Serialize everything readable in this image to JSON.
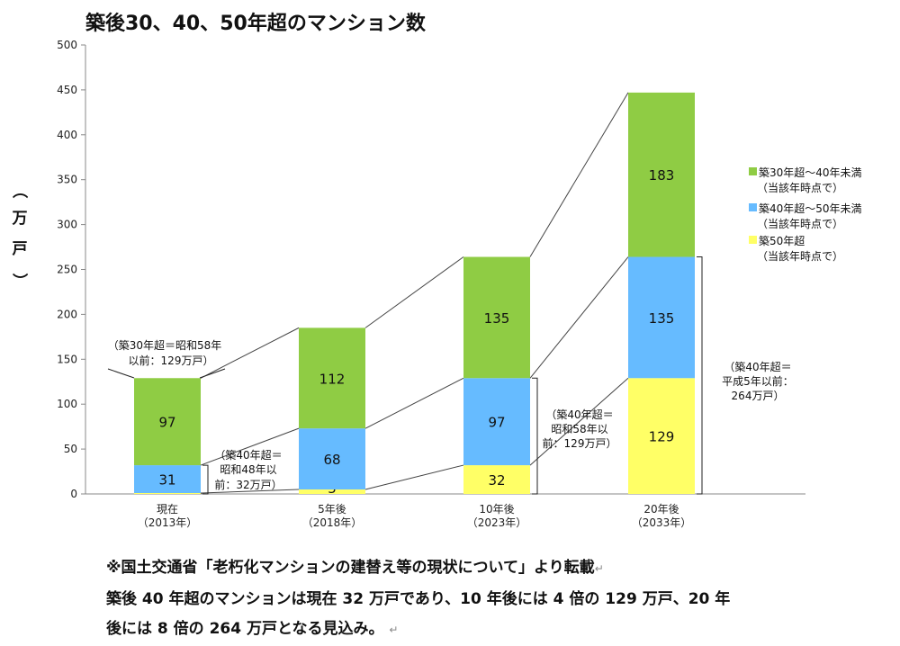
{
  "chart_data": {
    "type": "bar",
    "stacked": true,
    "title": "築後30、40、50年超のマンション数",
    "ylabel_chars": [
      "（",
      "万",
      "戸",
      "）"
    ],
    "ylim": [
      0,
      500
    ],
    "yticks": [
      0,
      50,
      100,
      150,
      200,
      250,
      300,
      350,
      400,
      450,
      500
    ],
    "grid": false,
    "categories": [
      [
        "現在",
        "（2013年）"
      ],
      [
        "5年後",
        "（2018年）"
      ],
      [
        "10年後",
        "（2023年）"
      ],
      [
        "20年後",
        "（2033年）"
      ]
    ],
    "series": [
      {
        "name_lines": [
          "築50年超",
          "（当該年時点で）"
        ],
        "color": "#ffff66",
        "values": [
          1,
          5,
          32,
          129
        ]
      },
      {
        "name_lines": [
          "築40年超～50年未満",
          "（当該年時点で）"
        ],
        "color": "#66bbff",
        "values": [
          31,
          68,
          97,
          135
        ]
      },
      {
        "name_lines": [
          "築30年超～40年未満",
          "（当該年時点で）"
        ],
        "color": "#8fcc44",
        "values": [
          97,
          112,
          135,
          183
        ]
      }
    ],
    "legend_order": [
      2,
      1,
      0
    ],
    "legend_position": "right",
    "annotations": [
      {
        "lines": [
          "（築30年超＝昭和58年",
          "以前：129万戸）"
        ],
        "bracket_bar": 0,
        "bracket_from": 0,
        "bracket_to": 129,
        "bracket_type": "top"
      },
      {
        "lines": [
          "（築40年超＝",
          "昭和48年以",
          "前：32万戸）"
        ],
        "bracket_bar": 0,
        "bracket_from": 0,
        "bracket_to": 32,
        "bracket_type": "right"
      },
      {
        "lines": [
          "（築40年超＝",
          "昭和58年以",
          "前：129万戸）"
        ],
        "bracket_bar": 2,
        "bracket_from": 0,
        "bracket_to": 129,
        "bracket_type": "right"
      },
      {
        "lines": [
          "（築40年超＝",
          "平成5年以前：",
          "264万戸）"
        ],
        "bracket_bar": 3,
        "bracket_from": 0,
        "bracket_to": 264,
        "bracket_type": "right"
      }
    ]
  },
  "source_note": "※国土交通省「老朽化マンションの建替え等の現状について」より転載",
  "summary_line1": "築後 40 年超のマンションは現在 32 万戸であり、10 年後には 4 倍の 129 万戸、20 年",
  "summary_line2": "後には 8 倍の 264 万戸となる見込み。",
  "paragraph_mark": "↵"
}
